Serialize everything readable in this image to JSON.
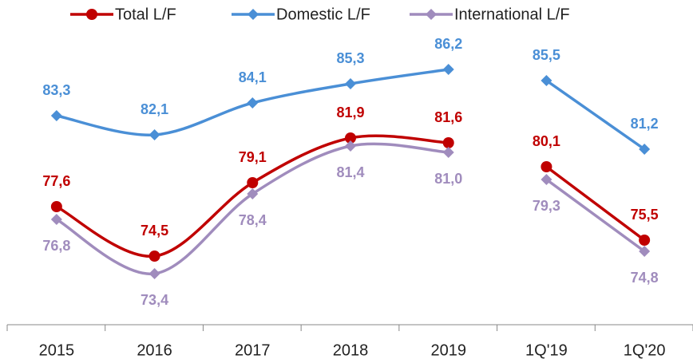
{
  "chart_data": {
    "type": "line",
    "categories": [
      "2015",
      "2016",
      "2017",
      "2018",
      "2019",
      "1Q'19",
      "1Q'20"
    ],
    "breaks": [
      5
    ],
    "series": [
      {
        "name": "Total L/F",
        "color": "#c00000",
        "marker": "circle",
        "label_position": "above",
        "values": [
          77.6,
          74.5,
          79.1,
          81.9,
          81.6,
          80.1,
          75.5
        ],
        "value_labels": [
          "77,6",
          "74,5",
          "79,1",
          "81,9",
          "81,6",
          "80,1",
          "75,5"
        ]
      },
      {
        "name": "Domestic L/F",
        "color": "#4a8fd6",
        "marker": "diamond",
        "label_position": "above",
        "values": [
          83.3,
          82.1,
          84.1,
          85.3,
          86.2,
          85.5,
          81.2
        ],
        "value_labels": [
          "83,3",
          "82,1",
          "84,1",
          "85,3",
          "86,2",
          "85,5",
          "81,2"
        ]
      },
      {
        "name": "International L/F",
        "color": "#a08cbd",
        "marker": "diamond",
        "label_position": "below",
        "values": [
          76.8,
          73.4,
          78.4,
          81.4,
          81.0,
          79.3,
          74.8
        ],
        "value_labels": [
          "76,8",
          "73,4",
          "78,4",
          "81,4",
          "81,0",
          "79,3",
          "74,8"
        ]
      }
    ],
    "ylim": [
      70,
      90
    ],
    "legend": "top"
  }
}
